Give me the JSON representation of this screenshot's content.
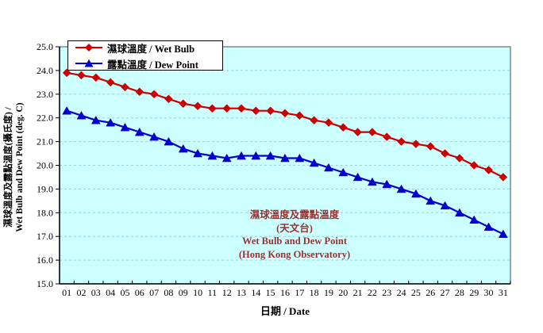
{
  "chart": {
    "colors": {
      "plot_bg": "#CCFFFF",
      "grid": "#A6CFCF",
      "border": "#5F6F6F",
      "axis": "#000000",
      "annotation": "#993333",
      "wet_bulb": "#CC0000",
      "dew_point": "#0000CC"
    }
  },
  "chart_data": {
    "type": "line",
    "categories": [
      "01",
      "02",
      "03",
      "04",
      "05",
      "06",
      "07",
      "08",
      "09",
      "10",
      "11",
      "12",
      "13",
      "14",
      "15",
      "16",
      "17",
      "18",
      "19",
      "20",
      "21",
      "22",
      "23",
      "24",
      "25",
      "26",
      "27",
      "28",
      "29",
      "30",
      "31"
    ],
    "series": [
      {
        "name": "濕球溫度 / Wet Bulb",
        "marker": "diamond",
        "color": "#CC0000",
        "values": [
          23.9,
          23.8,
          23.7,
          23.5,
          23.3,
          23.1,
          23.0,
          22.8,
          22.6,
          22.5,
          22.4,
          22.4,
          22.4,
          22.3,
          22.3,
          22.2,
          22.1,
          21.9,
          21.8,
          21.6,
          21.4,
          21.4,
          21.2,
          21.0,
          20.9,
          20.8,
          20.5,
          20.3,
          20.0,
          19.8,
          19.5
        ]
      },
      {
        "name": "露點溫度 / Dew Point",
        "marker": "triangle",
        "color": "#0000CC",
        "values": [
          22.3,
          22.1,
          21.9,
          21.8,
          21.6,
          21.4,
          21.2,
          21.0,
          20.7,
          20.5,
          20.4,
          20.3,
          20.4,
          20.4,
          20.4,
          20.3,
          20.3,
          20.1,
          19.9,
          19.7,
          19.5,
          19.3,
          19.2,
          19.0,
          18.8,
          18.5,
          18.3,
          18.0,
          17.7,
          17.4,
          17.1
        ]
      }
    ],
    "xlabel": "日期 / Date",
    "ylabel": [
      "濕球溫度及露點溫度(攝氏度) /",
      "Wet Bulb and Dew Point (deg. C)"
    ],
    "ylim": [
      15.0,
      25.0
    ],
    "ytick_step": 1.0,
    "ytick_decimals": 1,
    "grid": "horizontal-dashed",
    "legend_position": "top-left",
    "annotation": {
      "lines": [
        "濕球溫度及露點溫度",
        "(天文台)",
        "Wet Bulb and Dew Point",
        "(Hong Kong Observatory)"
      ],
      "color": "#993333"
    }
  }
}
